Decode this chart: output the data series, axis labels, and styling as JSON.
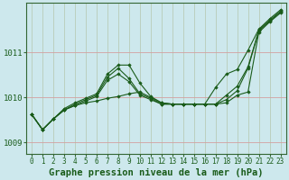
{
  "bg_color": "#cde8ed",
  "grid_color_h": "#d4a0a0",
  "grid_color_v": "#b8ccb8",
  "line_color": "#1a5c1a",
  "marker_color": "#1a5c1a",
  "xlabel": "Graphe pression niveau de la mer (hPa)",
  "xlabel_fontsize": 7.5,
  "xlim": [
    -0.5,
    23.5
  ],
  "ylim": [
    1008.75,
    1012.1
  ],
  "yticks": [
    1009,
    1010,
    1011
  ],
  "xticks": [
    0,
    1,
    2,
    3,
    4,
    5,
    6,
    7,
    8,
    9,
    10,
    11,
    12,
    13,
    14,
    15,
    16,
    17,
    18,
    19,
    20,
    21,
    22,
    23
  ],
  "series": [
    [
      1009.62,
      1009.28,
      1009.52,
      1009.72,
      1009.82,
      1009.88,
      1009.92,
      1009.98,
      1010.02,
      1010.08,
      1010.12,
      1010.0,
      1009.88,
      1009.85,
      1009.85,
      1009.85,
      1009.85,
      1009.85,
      1009.88,
      1010.05,
      1010.12,
      1011.45,
      1011.68,
      1011.88
    ],
    [
      1009.62,
      1009.28,
      1009.52,
      1009.72,
      1009.82,
      1009.92,
      1010.02,
      1010.38,
      1010.52,
      1010.35,
      1010.05,
      1009.95,
      1009.85,
      1009.85,
      1009.85,
      1009.85,
      1009.85,
      1009.85,
      1009.95,
      1010.15,
      1010.65,
      1011.48,
      1011.7,
      1011.9
    ],
    [
      1009.62,
      1009.28,
      1009.52,
      1009.72,
      1009.85,
      1009.95,
      1010.05,
      1010.45,
      1010.65,
      1010.42,
      1010.08,
      1009.98,
      1009.85,
      1009.85,
      1009.85,
      1009.85,
      1009.85,
      1009.85,
      1010.05,
      1010.25,
      1010.68,
      1011.5,
      1011.72,
      1011.92
    ],
    [
      1009.62,
      1009.28,
      1009.52,
      1009.75,
      1009.88,
      1009.98,
      1010.08,
      1010.52,
      1010.72,
      1010.72,
      1010.32,
      1010.02,
      1009.88,
      1009.85,
      1009.85,
      1009.85,
      1009.85,
      1010.22,
      1010.52,
      1010.62,
      1011.05,
      1011.52,
      1011.75,
      1011.95
    ]
  ]
}
